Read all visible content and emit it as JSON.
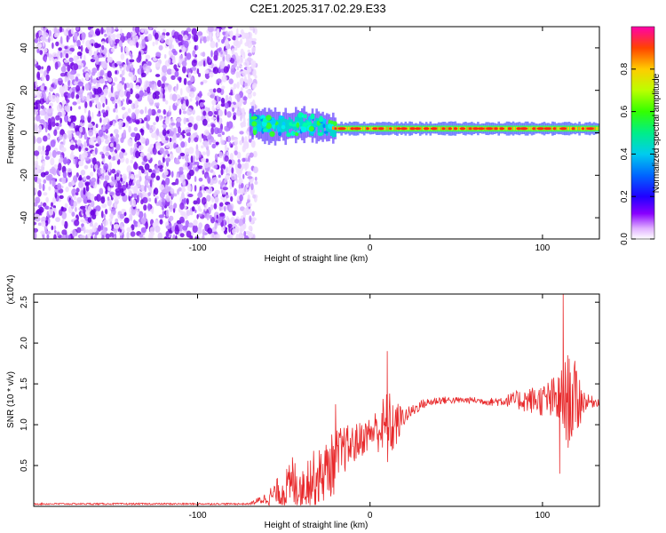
{
  "title": "C2E1.2025.317.02.29.E33",
  "chart_data": [
    {
      "type": "heatmap",
      "xlabel": "Height of straight line (km)",
      "ylabel": "Frequency (Hz)",
      "xlim": [
        -195,
        133
      ],
      "ylim": [
        -50,
        50
      ],
      "xticks": [
        -100,
        0,
        100
      ],
      "yticks": [
        -40,
        -20,
        0,
        20,
        40
      ],
      "colorbar": {
        "label": "Normalized spectral amplitude",
        "ticks": [
          0.0,
          0.2,
          0.4,
          0.6,
          0.8
        ],
        "range": [
          0,
          1
        ]
      },
      "noise_region": {
        "x_from": -195,
        "x_to": -70,
        "y_from": -50,
        "y_to": 50
      },
      "signal_ridge": {
        "x": [
          -70,
          -60,
          -50,
          -40,
          -30,
          -20,
          -10,
          0,
          10,
          20,
          40,
          60,
          80,
          100,
          120,
          133
        ],
        "y": [
          5,
          3,
          3,
          4,
          3,
          2,
          2,
          2,
          2,
          2,
          2,
          2,
          2,
          2,
          2,
          2
        ]
      }
    },
    {
      "type": "line",
      "xlabel": "Height of straight line (km)",
      "ylabel": "SNR (10 * v/v)",
      "y_multiplier": "(x10^4)",
      "xlim": [
        -195,
        133
      ],
      "ylim": [
        0,
        2.6
      ],
      "xticks": [
        -100,
        0,
        100
      ],
      "yticks": [
        0.5,
        1.0,
        1.5,
        2.0,
        2.5
      ],
      "series_color": "#e8282a",
      "envelope": {
        "x": [
          -195,
          -100,
          -70,
          -60,
          -50,
          -40,
          -30,
          -20,
          -15,
          -10,
          0,
          5,
          10,
          15,
          20,
          30,
          40,
          50,
          60,
          70,
          80,
          90,
          100,
          110,
          115,
          120,
          125,
          133
        ],
        "mean": [
          0.03,
          0.03,
          0.03,
          0.1,
          0.2,
          0.3,
          0.35,
          0.55,
          0.7,
          0.75,
          0.9,
          0.95,
          0.95,
          1.0,
          1.1,
          1.25,
          1.3,
          1.3,
          1.3,
          1.28,
          1.3,
          1.3,
          1.3,
          1.3,
          1.3,
          1.3,
          1.28,
          1.28
        ],
        "spread": [
          0.01,
          0.01,
          0.01,
          0.08,
          0.25,
          0.35,
          0.35,
          0.4,
          0.3,
          0.25,
          0.2,
          0.3,
          0.5,
          0.3,
          0.1,
          0.06,
          0.05,
          0.04,
          0.04,
          0.05,
          0.08,
          0.15,
          0.2,
          0.35,
          0.6,
          0.45,
          0.1,
          0.05
        ]
      },
      "peaks": [
        {
          "x": 10,
          "y": 1.9
        },
        {
          "x": 112,
          "y": 2.62
        },
        {
          "x": 110,
          "y": 0.4
        },
        {
          "x": -20,
          "y": 1.25
        },
        {
          "x": -45,
          "y": 0.6
        }
      ]
    }
  ]
}
